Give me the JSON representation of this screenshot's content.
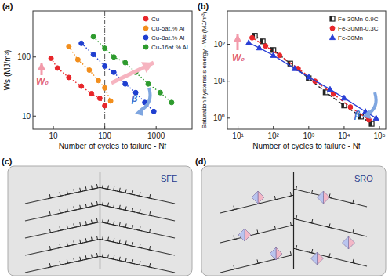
{
  "chart_data": [
    {
      "type": "scatter",
      "title": "(a)",
      "x_label": "Number of cycles to failure - Nf",
      "y_label": "Ws (MJ/m³)",
      "log": true,
      "grid": false,
      "legend": "upper right",
      "xlim": [
        4,
        5000
      ],
      "ylim": [
        6,
        600
      ],
      "xticks": [
        10,
        100,
        1000
      ],
      "yticks": [
        10,
        100
      ],
      "vlines": [
        100
      ],
      "annotations": [
        "W₀",
        "β"
      ],
      "series": [
        {
          "name": "Cu",
          "color": "#e8262a",
          "marker": "circle",
          "line_style": "dotted",
          "x": [
            9,
            12,
            20,
            35,
            55,
            80,
            100
          ],
          "values": [
            95,
            65,
            45,
            32,
            24,
            20,
            15
          ]
        },
        {
          "name": "Cu-5at.% Al",
          "color": "#f28e1c",
          "marker": "circle",
          "line_style": "dotted",
          "x": [
            20,
            30,
            50,
            75,
            100,
            130
          ],
          "values": [
            150,
            90,
            60,
            40,
            30,
            18
          ]
        },
        {
          "name": "Cu-8at.% Al",
          "color": "#1f3fd0",
          "marker": "circle",
          "line_style": "dotted",
          "x": [
            35,
            60,
            100,
            150,
            250,
            400,
            600,
            900
          ],
          "values": [
            170,
            110,
            70,
            55,
            35,
            25,
            17,
            12
          ]
        },
        {
          "name": "Cu-16at.% Al",
          "color": "#2e9b2e",
          "marker": "circle",
          "line_style": "dotted",
          "x": [
            60,
            100,
            150,
            250,
            400,
            700,
            1200,
            2000
          ],
          "values": [
            220,
            140,
            100,
            80,
            55,
            35,
            25,
            17
          ]
        }
      ]
    },
    {
      "type": "scatter",
      "title": "(b)",
      "x_label": "Number of cycles to failure - Nf",
      "y_label": "Saturation hysteresis energy - Ws (MJ/m³)",
      "log": true,
      "grid": false,
      "legend": "upper right",
      "xlim": [
        5,
        150000
      ],
      "ylim": [
        0.5,
        800
      ],
      "xticks": [
        {
          "value": 10,
          "label": "10¹"
        },
        {
          "value": 100,
          "label": "10²"
        },
        {
          "value": 1000,
          "label": "10³"
        },
        {
          "value": 10000,
          "label": "10⁴"
        },
        {
          "value": 100000,
          "label": "10⁵"
        }
      ],
      "yticks": [
        {
          "value": 1,
          "label": "10⁰"
        },
        {
          "value": 10,
          "label": "10¹"
        },
        {
          "value": 100,
          "label": "10²"
        }
      ],
      "annotations": [
        "W₀",
        "β"
      ],
      "series": [
        {
          "name": "Fe-30Mn-0.9C",
          "color": "#222222",
          "marker": "square",
          "line_style": "dashed",
          "x": [
            30,
            50,
            100,
            300,
            1000,
            3000,
            10000,
            30000,
            60000
          ],
          "values": [
            170,
            120,
            70,
            30,
            12,
            5,
            2.2,
            1.1,
            0.7
          ]
        },
        {
          "name": "Fe-30Mn-0.3C",
          "color": "#e8262a",
          "marker": "circle",
          "line_style": "dashed",
          "x": [
            25,
            60,
            150,
            500,
            1500,
            5000,
            15000,
            50000
          ],
          "values": [
            150,
            90,
            50,
            22,
            10,
            4.5,
            2,
            0.9
          ]
        },
        {
          "name": "Fe-30Mn",
          "color": "#2a3fd6",
          "marker": "triangle",
          "line_style": "solid",
          "x": [
            20,
            40,
            100,
            400,
            1000,
            4000,
            10000,
            40000,
            80000
          ],
          "values": [
            110,
            80,
            50,
            22,
            13,
            6,
            3.5,
            1.5,
            1.0
          ]
        }
      ]
    }
  ],
  "panels": [
    {
      "label": "(c)",
      "text": "SFE"
    },
    {
      "label": "(d)",
      "text": "SRO"
    }
  ]
}
